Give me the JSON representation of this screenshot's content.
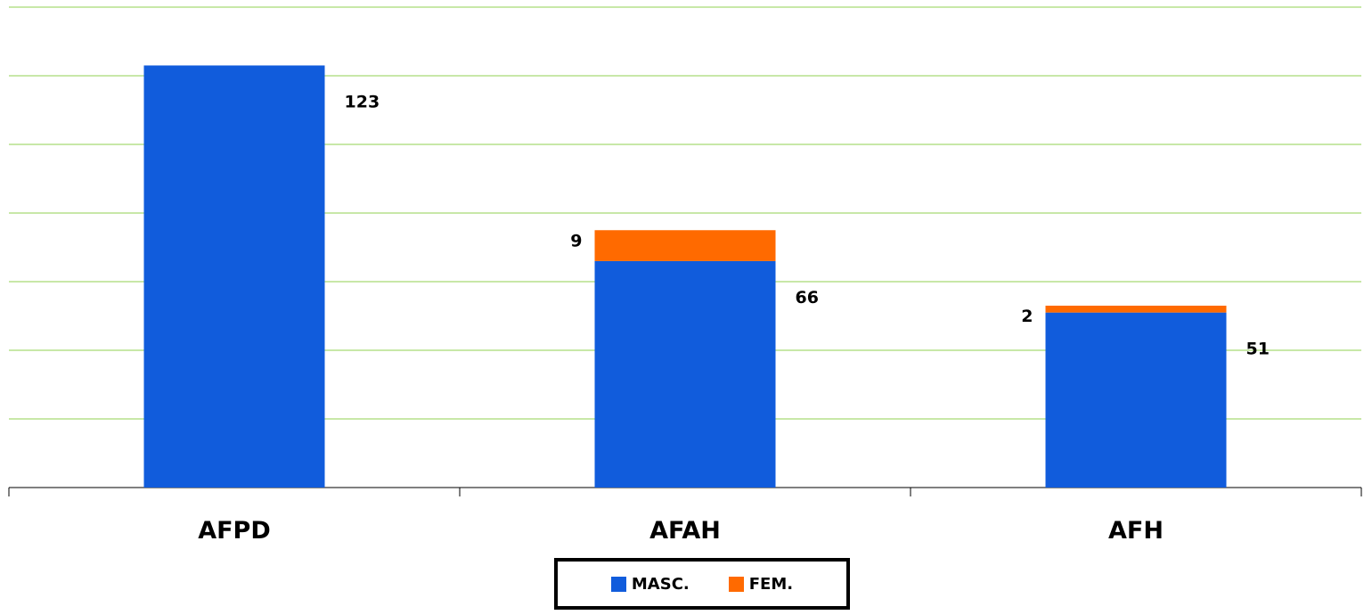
{
  "chart_data": {
    "type": "bar",
    "stacked": true,
    "categories": [
      "AFPD",
      "AFAH",
      "AFH"
    ],
    "series": [
      {
        "name": "MASC.",
        "values": [
          123,
          66,
          51
        ],
        "labels": [
          "123",
          "66",
          "51"
        ],
        "color": "#115cdc"
      },
      {
        "name": "FEM.",
        "values": [
          0,
          9,
          2
        ],
        "labels": [
          "",
          "9",
          "2"
        ],
        "color": "#ff6a00"
      }
    ],
    "title": "",
    "xlabel": "",
    "ylabel": "",
    "ylim": [
      0,
      140
    ],
    "grid": true,
    "grid_color": "#92d050",
    "legend_position": "bottom"
  }
}
